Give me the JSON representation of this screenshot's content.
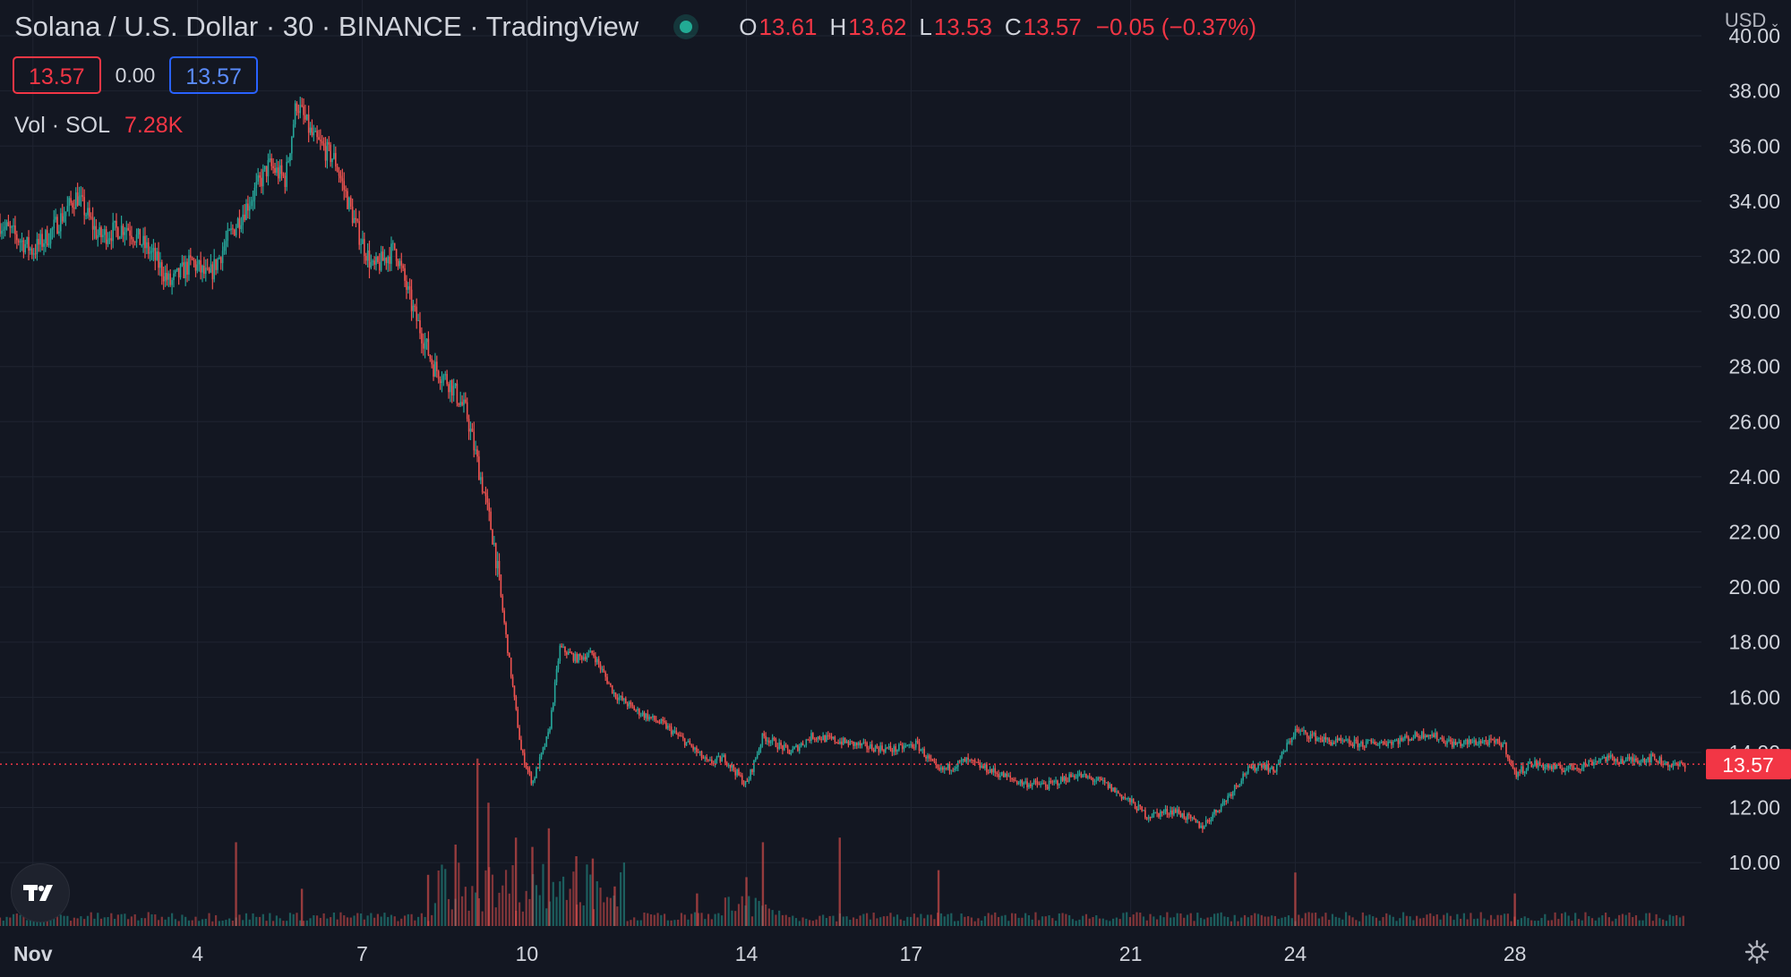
{
  "header": {
    "symbol_title": "Solana / U.S. Dollar · 30 · BINANCE · TradingView",
    "ohlc": {
      "o_label": "O",
      "o": "13.61",
      "h_label": "H",
      "h": "13.62",
      "l_label": "L",
      "l": "13.53",
      "c_label": "C",
      "c": "13.57"
    },
    "change": "−0.05 (−0.37%)",
    "sell_price": "13.57",
    "spread": "0.00",
    "buy_price": "13.57",
    "volume_label": "Vol · SOL",
    "volume_value": "7.28K",
    "currency": "USD"
  },
  "colors": {
    "background": "#131722",
    "up": "#26a69a",
    "down": "#ef5350",
    "last_price": "#f23645",
    "grid": "#1f2431",
    "text": "#d1d4dc"
  },
  "icons": {
    "status": "market-status-dot",
    "logo": "tradingview-logo-icon",
    "settings": "gear-icon"
  },
  "chart_data": {
    "type": "line",
    "title": "Solana / U.S. Dollar · 30 · BINANCE · TradingView",
    "xlabel": "",
    "ylabel": "",
    "x_ticks": [
      "Nov",
      "4",
      "7",
      "10",
      "14",
      "17",
      "21",
      "24",
      "28"
    ],
    "x_tick_days": [
      1,
      4,
      7,
      10,
      14,
      17,
      21,
      24,
      28
    ],
    "xlim_days": [
      0.4,
      31.4
    ],
    "y_ticks": [
      "40.00",
      "38.00",
      "36.00",
      "34.00",
      "32.00",
      "30.00",
      "28.00",
      "26.00",
      "24.00",
      "22.00",
      "20.00",
      "18.00",
      "16.00",
      "14.00",
      "12.00",
      "10.00"
    ],
    "ylim": [
      7.7,
      41.3
    ],
    "last_price": 13.57,
    "last_price_label": "13.57",
    "series": [
      {
        "values_note": "approximate price (USD) path read from chart, x = day of November",
        "x": [
          0.4,
          1.0,
          1.3,
          1.8,
          2.2,
          2.7,
          3.2,
          3.5,
          3.9,
          4.2,
          4.6,
          5.0,
          5.3,
          5.6,
          5.8,
          6.1,
          6.5,
          6.9,
          7.2,
          7.6,
          7.9,
          8.3,
          8.6,
          8.9,
          9.2,
          9.4,
          9.6,
          9.9,
          10.1,
          10.4,
          10.6,
          10.9,
          11.2,
          11.6,
          12.0,
          12.5,
          13.0,
          13.3,
          13.6,
          14.0,
          14.3,
          14.8,
          15.2,
          15.7,
          16.2,
          16.7,
          17.1,
          17.5,
          18.0,
          18.5,
          19.0,
          19.5,
          20.0,
          20.5,
          21.0,
          21.3,
          21.8,
          22.3,
          22.7,
          23.1,
          23.4,
          23.6,
          24.0,
          24.6,
          25.2,
          25.8,
          26.4,
          26.9,
          27.4,
          27.8,
          28.0,
          28.3,
          28.8,
          29.2,
          29.6,
          30.0,
          30.5,
          30.9,
          31.1
        ],
        "values": [
          33.2,
          32.2,
          32.8,
          34.2,
          32.7,
          33.1,
          32.0,
          31.0,
          31.8,
          31.2,
          32.8,
          34.2,
          35.3,
          34.8,
          37.6,
          36.3,
          35.5,
          33.0,
          31.5,
          32.3,
          30.2,
          28.0,
          27.4,
          26.3,
          23.6,
          21.6,
          18.5,
          14.0,
          12.9,
          14.7,
          17.8,
          17.4,
          17.6,
          16.1,
          15.5,
          15.0,
          14.2,
          13.6,
          13.8,
          12.8,
          14.6,
          14.0,
          14.6,
          14.4,
          14.2,
          14.1,
          14.3,
          13.3,
          13.7,
          13.3,
          12.9,
          12.8,
          13.2,
          12.9,
          12.2,
          11.7,
          11.9,
          11.3,
          12.2,
          13.3,
          13.6,
          13.3,
          14.8,
          14.4,
          14.3,
          14.4,
          14.7,
          14.3,
          14.4,
          14.3,
          13.2,
          13.6,
          13.4,
          13.5,
          13.8,
          13.7,
          13.8,
          13.5,
          13.57
        ]
      }
    ],
    "volume_spikes": [
      {
        "x": 4.7,
        "level": 0.36
      },
      {
        "x": 5.9,
        "level": 0.16
      },
      {
        "x": 8.2,
        "level": 0.22
      },
      {
        "x": 8.7,
        "level": 0.35
      },
      {
        "x": 9.1,
        "level": 0.72
      },
      {
        "x": 9.3,
        "level": 0.53
      },
      {
        "x": 9.8,
        "level": 0.38
      },
      {
        "x": 10.1,
        "level": 0.34
      },
      {
        "x": 10.4,
        "level": 0.42
      },
      {
        "x": 10.9,
        "level": 0.3
      },
      {
        "x": 11.2,
        "level": 0.29
      },
      {
        "x": 11.6,
        "level": 0.17
      },
      {
        "x": 13.1,
        "level": 0.14
      },
      {
        "x": 14.0,
        "level": 0.21
      },
      {
        "x": 14.3,
        "level": 0.36
      },
      {
        "x": 15.7,
        "level": 0.38
      },
      {
        "x": 17.5,
        "level": 0.24
      },
      {
        "x": 24.0,
        "level": 0.23
      },
      {
        "x": 28.0,
        "level": 0.14
      }
    ]
  }
}
